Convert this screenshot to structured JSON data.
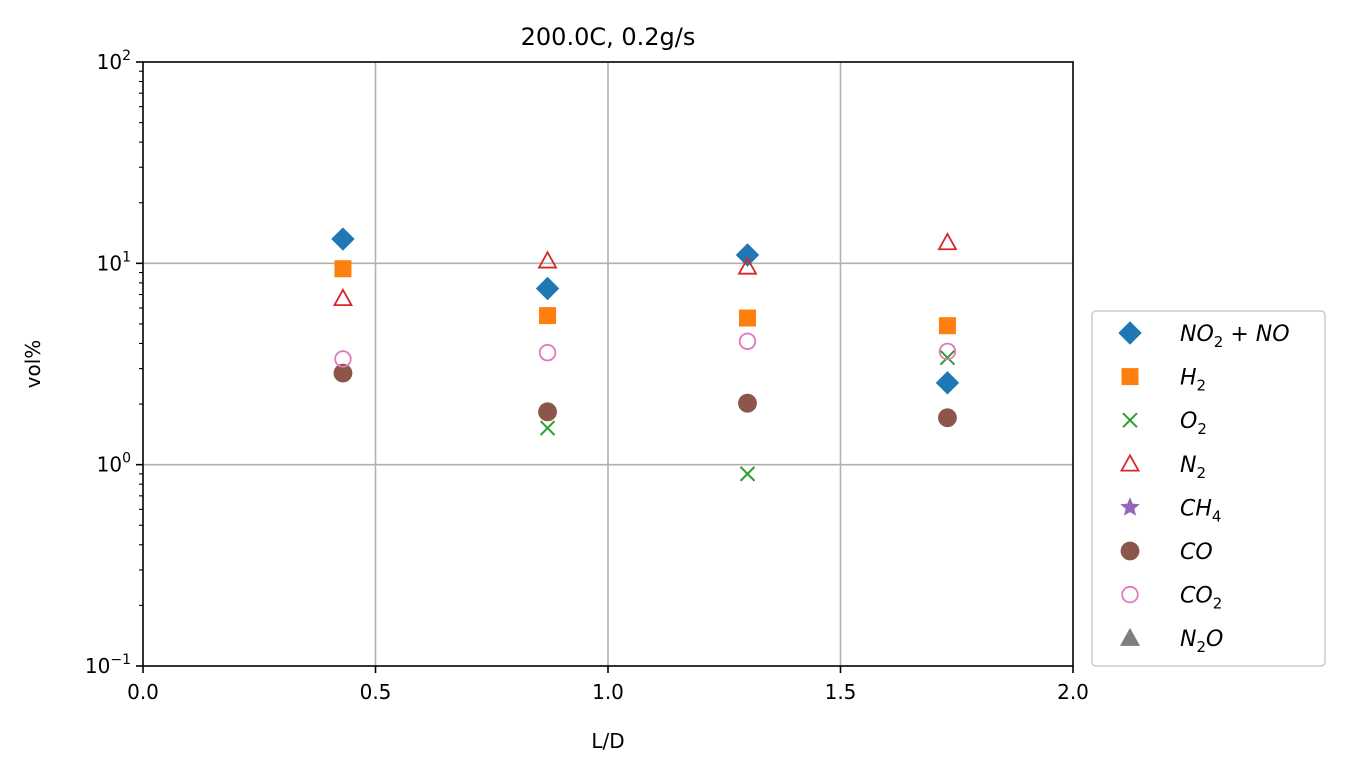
{
  "chart_data": {
    "type": "scatter",
    "title": "200.0C, 0.2g/s",
    "xlabel": "L/D",
    "ylabel": "vol%",
    "xlim": [
      0.0,
      2.0
    ],
    "ylim": [
      0.1,
      100
    ],
    "yscale": "log",
    "grid": true,
    "legend_position": "outside-right",
    "xticks": [
      0.0,
      0.5,
      1.0,
      1.5,
      2.0
    ],
    "xtick_labels": [
      "0.0",
      "0.5",
      "1.0",
      "1.5",
      "2.0"
    ],
    "yticks": [
      {
        "value": 0.1,
        "base": "10",
        "exp": "−1"
      },
      {
        "value": 1,
        "base": "10",
        "exp": "0"
      },
      {
        "value": 10,
        "base": "10",
        "exp": "1"
      },
      {
        "value": 100,
        "base": "10",
        "exp": "2"
      }
    ],
    "series": [
      {
        "name": "NO2 + NO",
        "label_parts": [
          [
            "NO",
            ""
          ],
          [
            "2",
            "sub"
          ],
          [
            " + NO",
            ""
          ]
        ],
        "marker": "diamond",
        "color": "#1f77b4",
        "fill": true,
        "x": [
          0.43,
          0.87,
          1.3,
          1.73
        ],
        "y": [
          13.2,
          7.5,
          11.0,
          2.55
        ]
      },
      {
        "name": "H2",
        "label_parts": [
          [
            "H",
            ""
          ],
          [
            "2",
            "sub"
          ]
        ],
        "marker": "square",
        "color": "#ff7f0e",
        "fill": true,
        "x": [
          0.43,
          0.87,
          1.3,
          1.73
        ],
        "y": [
          9.4,
          5.5,
          5.35,
          4.9
        ]
      },
      {
        "name": "O2",
        "label_parts": [
          [
            "O",
            ""
          ],
          [
            "2",
            "sub"
          ]
        ],
        "marker": "x",
        "color": "#2ca02c",
        "fill": false,
        "x": [
          0.87,
          1.3,
          1.73
        ],
        "y": [
          1.52,
          0.9,
          3.4
        ]
      },
      {
        "name": "N2",
        "label_parts": [
          [
            "N",
            ""
          ],
          [
            "2",
            "sub"
          ]
        ],
        "marker": "triangle",
        "color": "#d62728",
        "fill": false,
        "x": [
          0.43,
          0.87,
          1.3,
          1.73
        ],
        "y": [
          6.7,
          10.3,
          9.6,
          12.7
        ]
      },
      {
        "name": "CH4",
        "label_parts": [
          [
            "CH",
            ""
          ],
          [
            "4",
            "sub"
          ]
        ],
        "marker": "star",
        "color": "#9467bd",
        "fill": true,
        "x": [],
        "y": []
      },
      {
        "name": "CO",
        "label_parts": [
          [
            "CO",
            ""
          ]
        ],
        "marker": "circle",
        "color": "#8c564b",
        "fill": true,
        "x": [
          0.43,
          0.87,
          1.3,
          1.73
        ],
        "y": [
          2.85,
          1.83,
          2.02,
          1.71
        ]
      },
      {
        "name": "CO2",
        "label_parts": [
          [
            "CO",
            ""
          ],
          [
            "2",
            "sub"
          ]
        ],
        "marker": "circle",
        "color": "#e377c2",
        "fill": false,
        "x": [
          0.43,
          0.87,
          1.3,
          1.73
        ],
        "y": [
          3.35,
          3.6,
          4.1,
          3.65
        ]
      },
      {
        "name": "N2O",
        "label_parts": [
          [
            "N",
            ""
          ],
          [
            "2",
            "sub"
          ],
          [
            "O",
            ""
          ]
        ],
        "marker": "triangle",
        "color": "#7f7f7f",
        "fill": true,
        "x": [],
        "y": []
      }
    ]
  }
}
